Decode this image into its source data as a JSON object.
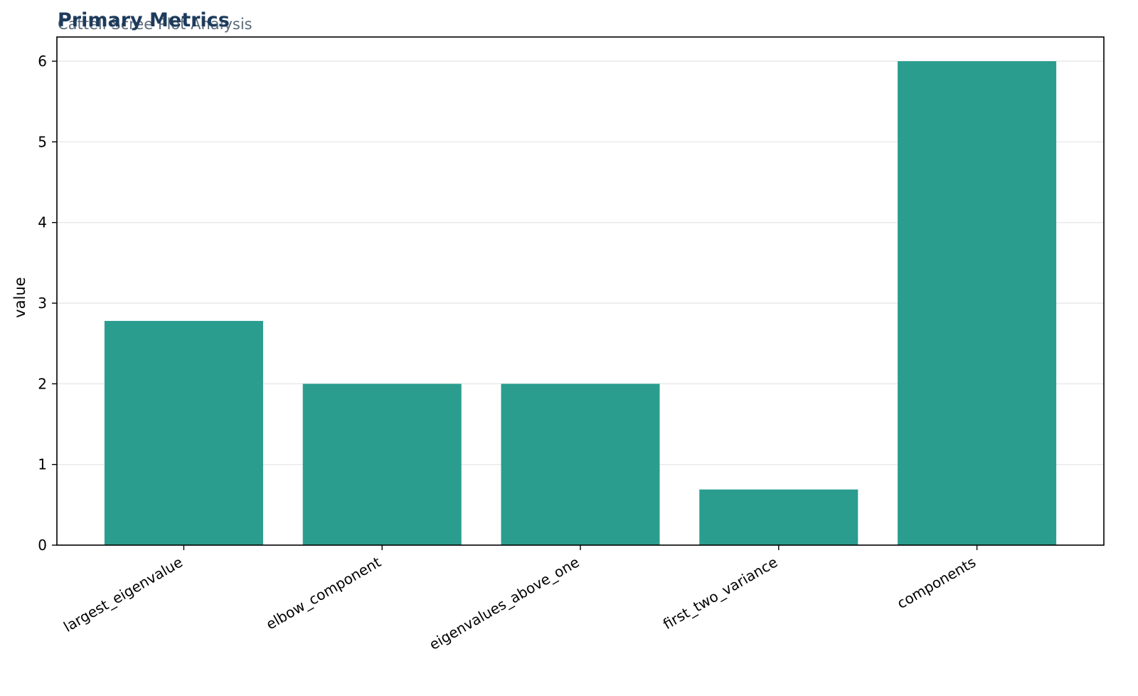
{
  "colors": {
    "bar": "#2a9d8f",
    "title": "#1d3b5c",
    "subtitle": "#5a6b7a",
    "grid": "#e8e8e8",
    "axis": "#000000"
  },
  "chart_data": {
    "type": "bar",
    "title": "Primary Metrics",
    "subtitle": "Cattell Scree Plot Analysis",
    "xlabel": "",
    "ylabel": "value",
    "categories": [
      "largest_eigenvalue",
      "elbow_component",
      "eigenvalues_above_one",
      "first_two_variance",
      "components"
    ],
    "values": [
      2.78,
      2.0,
      2.0,
      0.69,
      6.0
    ],
    "ylim": [
      0,
      6.3
    ],
    "yticks": [
      0,
      1,
      2,
      3,
      4,
      5,
      6
    ],
    "grid": "horizontal",
    "legend": "none"
  }
}
